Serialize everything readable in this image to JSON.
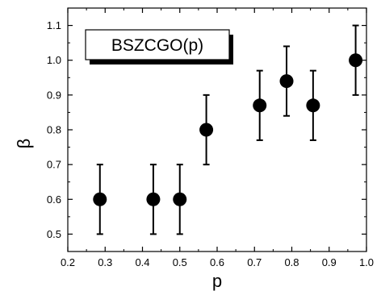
{
  "chart_data": {
    "type": "scatter",
    "title": "",
    "xlabel": "p",
    "ylabel": "β",
    "xlim": [
      0.2,
      1.0
    ],
    "ylim": [
      0.45,
      1.15
    ],
    "x_ticks": [
      "0.2",
      "0.3",
      "0.4",
      "0.5",
      "0.6",
      "0.7",
      "0.8",
      "0.9",
      "1.0"
    ],
    "y_ticks": [
      "0.5",
      "0.6",
      "0.7",
      "0.8",
      "0.9",
      "1.0",
      "1.1"
    ],
    "grid": false,
    "legend_position": "top-left",
    "series": [
      {
        "name": "BSZCGO(p)",
        "marker": "filled-circle",
        "color": "#000000",
        "x": [
          0.286,
          0.429,
          0.5,
          0.571,
          0.714,
          0.786,
          0.857,
          0.971
        ],
        "y": [
          0.6,
          0.6,
          0.6,
          0.8,
          0.87,
          0.94,
          0.87,
          1.0
        ],
        "error": [
          0.1,
          0.1,
          0.1,
          0.1,
          0.1,
          0.1,
          0.1,
          0.1
        ]
      }
    ]
  }
}
